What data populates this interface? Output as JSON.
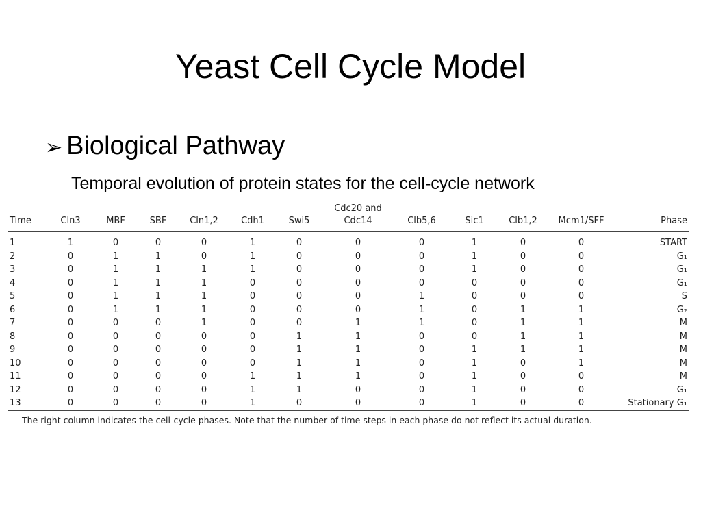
{
  "slide": {
    "title": "Yeast Cell Cycle Model",
    "bullet": "Biological Pathway",
    "subtitle": "Temporal evolution of protein states for the cell-cycle network"
  },
  "table": {
    "headers": [
      "Time",
      "Cln3",
      "MBF",
      "SBF",
      "Cln1,2",
      "Cdh1",
      "Swi5",
      "Cdc20 and Cdc14",
      "Clb5,6",
      "Sic1",
      "Clb1,2",
      "Mcm1/SFF",
      "Phase"
    ],
    "rows": [
      [
        "1",
        "1",
        "0",
        "0",
        "0",
        "1",
        "0",
        "0",
        "0",
        "1",
        "0",
        "0",
        "START"
      ],
      [
        "2",
        "0",
        "1",
        "1",
        "0",
        "1",
        "0",
        "0",
        "0",
        "1",
        "0",
        "0",
        "G₁"
      ],
      [
        "3",
        "0",
        "1",
        "1",
        "1",
        "1",
        "0",
        "0",
        "0",
        "1",
        "0",
        "0",
        "G₁"
      ],
      [
        "4",
        "0",
        "1",
        "1",
        "1",
        "0",
        "0",
        "0",
        "0",
        "0",
        "0",
        "0",
        "G₁"
      ],
      [
        "5",
        "0",
        "1",
        "1",
        "1",
        "0",
        "0",
        "0",
        "1",
        "0",
        "0",
        "0",
        "S"
      ],
      [
        "6",
        "0",
        "1",
        "1",
        "1",
        "0",
        "0",
        "0",
        "1",
        "0",
        "1",
        "1",
        "G₂"
      ],
      [
        "7",
        "0",
        "0",
        "0",
        "1",
        "0",
        "0",
        "1",
        "1",
        "0",
        "1",
        "1",
        "M"
      ],
      [
        "8",
        "0",
        "0",
        "0",
        "0",
        "0",
        "1",
        "1",
        "0",
        "0",
        "1",
        "1",
        "M"
      ],
      [
        "9",
        "0",
        "0",
        "0",
        "0",
        "0",
        "1",
        "1",
        "0",
        "1",
        "1",
        "1",
        "M"
      ],
      [
        "10",
        "0",
        "0",
        "0",
        "0",
        "0",
        "1",
        "1",
        "0",
        "1",
        "0",
        "1",
        "M"
      ],
      [
        "11",
        "0",
        "0",
        "0",
        "0",
        "1",
        "1",
        "1",
        "0",
        "1",
        "0",
        "0",
        "M"
      ],
      [
        "12",
        "0",
        "0",
        "0",
        "0",
        "1",
        "1",
        "0",
        "0",
        "1",
        "0",
        "0",
        "G₁"
      ],
      [
        "13",
        "0",
        "0",
        "0",
        "0",
        "1",
        "0",
        "0",
        "0",
        "1",
        "0",
        "0",
        "Stationary G₁"
      ]
    ],
    "note": "The right column indicates the cell-cycle phases. Note that the number of time steps in each phase do not reflect its actual duration."
  }
}
